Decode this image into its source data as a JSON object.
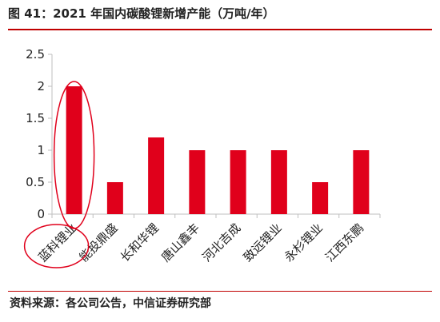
{
  "title": "图 41：2021 年国内碳酸锂新增产能（万吨/年）",
  "source": "资料来源：各公司公告，中信证券研究部",
  "colors": {
    "bar": "#e0001b",
    "accent": "#c00000",
    "highlight": "#e0001b",
    "axis": "#bfbfbf"
  },
  "chart_data": {
    "type": "bar",
    "title": "图 41：2021 年国内碳酸锂新增产能（万吨/年）",
    "xlabel": "",
    "ylabel": "",
    "categories": [
      "蓝科锂业",
      "能投鼎盛",
      "长和华锂",
      "唐山鑫丰",
      "河北吉成",
      "致远锂业",
      "永杉锂业",
      "江西东鹏"
    ],
    "values": [
      2,
      0.5,
      1.2,
      1,
      1,
      1,
      0.5,
      1
    ],
    "ylim": [
      0,
      2.5
    ],
    "yticks": [
      "0",
      "0.5",
      "1",
      "1.5",
      "2",
      "2.5"
    ],
    "grid": false,
    "legend": "none",
    "highlight_category": "蓝科锂业"
  }
}
